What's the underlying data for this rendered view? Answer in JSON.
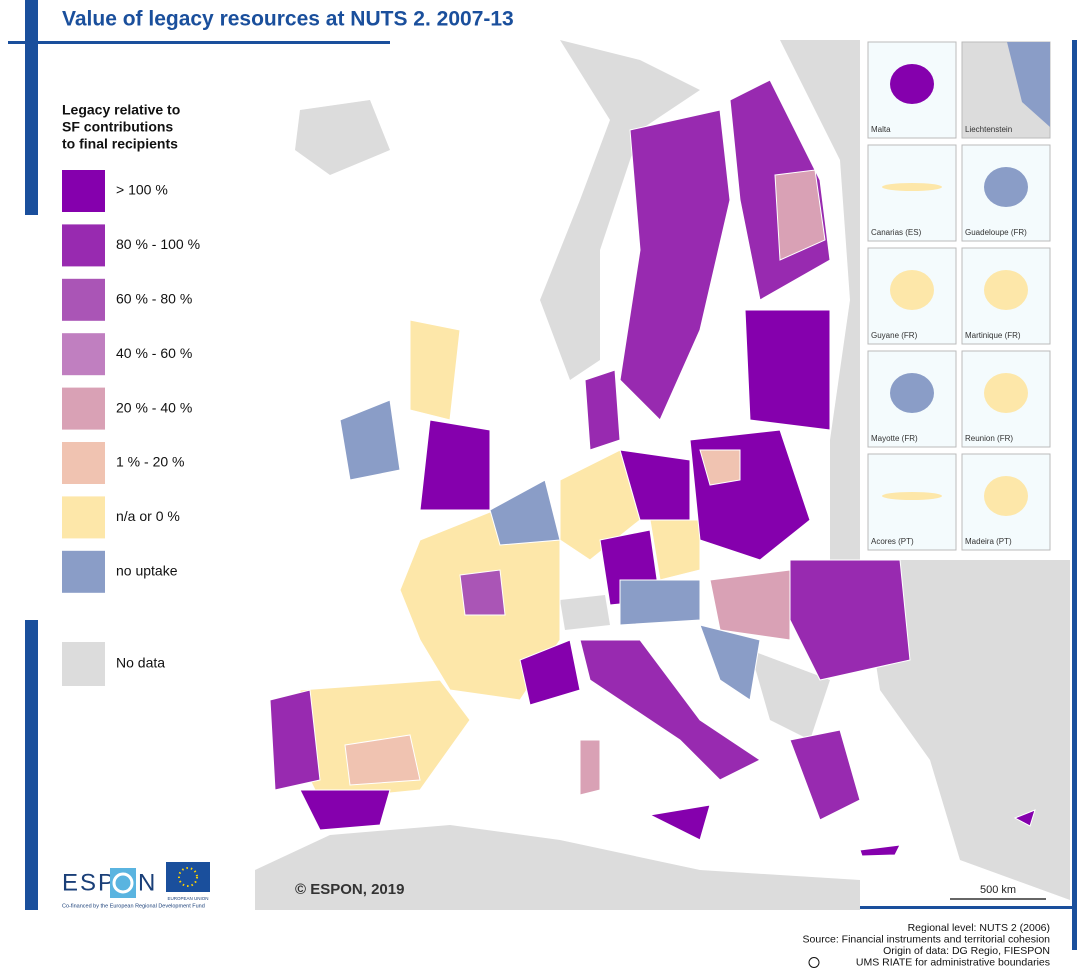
{
  "title": "Value of legacy resources at NUTS 2. 2007-13",
  "legend": {
    "title": [
      "Legacy relative to",
      "SF contributions",
      "to final recipients"
    ],
    "items": [
      {
        "label": "> 100 %",
        "color": "#8500ad"
      },
      {
        "label": "80 % - 100 %",
        "color": "#982ab0"
      },
      {
        "label": "60 % - 80 %",
        "color": "#aa55b6"
      },
      {
        "label": "40 % - 60 %",
        "color": "#c07fc0"
      },
      {
        "label": "20 % - 40 %",
        "color": "#d9a1b5"
      },
      {
        "label": "1 % - 20 %",
        "color": "#f0c3b1"
      },
      {
        "label": "n/a or 0 %",
        "color": "#fde7a9"
      },
      {
        "label": "no uptake",
        "color": "#8a9dc7"
      }
    ],
    "no_data": {
      "label": "No data",
      "color": "#dcdcdc"
    }
  },
  "insets": [
    "Malta",
    "Liechtenstein",
    "Canarias (ES)",
    "Guadeloupe (FR)",
    "Guyane (FR)",
    "Martinique (FR)",
    "Mayotte (FR)",
    "Reunion (FR)",
    "Acores (PT)",
    "Madeira (PT)"
  ],
  "copyright": "© ESPON, 2019",
  "scale": "500 km",
  "logo": {
    "left": "ESP",
    "right": "N",
    "cofinance": "Co-financed by the European Regional Development Fund",
    "eu": "EUROPEAN UNION"
  },
  "source": [
    "Regional level: NUTS 2 (2006)",
    "Source: Financial instruments and territorial cohesion",
    "Origin of data: DG Regio, FIESPON",
    "UMS RIATE for administrative boundaries"
  ]
}
